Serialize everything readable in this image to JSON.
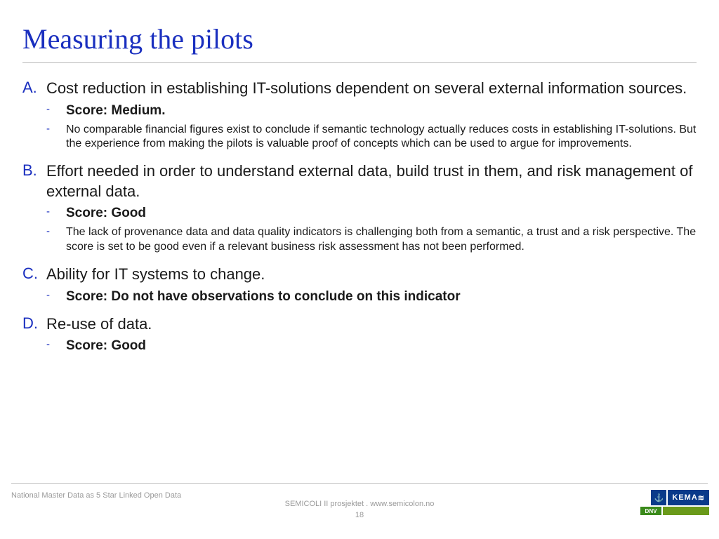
{
  "title": "Measuring the pilots",
  "title_color": "#1a2fbf",
  "body_color": "#1a1a1a",
  "letter_color": "#1a2fbf",
  "rule_color": "#b8b8b8",
  "items": [
    {
      "letter": "A.",
      "text": "Cost reduction in establishing IT-solutions dependent on several external information sources.",
      "score": "Score: Medium.",
      "desc": "No comparable financial figures exist to conclude if semantic technology actually reduces costs in establishing IT-solutions. But the experience from making the pilots is valuable proof of concepts which can be used to argue for improvements."
    },
    {
      "letter": "B.",
      "text": "Effort needed in order to understand external data, build trust in them, and risk management of external data.",
      "score": "Score: Good",
      "desc": "The lack of provenance data and data quality indicators is challenging both from a semantic, a trust and a risk perspective. The score is set to be good even if a relevant business risk assessment has not been performed."
    },
    {
      "letter": "C.",
      "text": "Ability for IT systems to change.",
      "score": "Score: Do not have observations to conclude on this indicator",
      "desc": ""
    },
    {
      "letter": "D.",
      "text": "Re-use of data.",
      "score": "Score: Good",
      "desc": ""
    }
  ],
  "footer": {
    "left": "National Master Data as 5 Star Linked Open Data",
    "center": "SEMICOLI II prosjektet . www.semicolon.no",
    "page": "18",
    "logos": {
      "anchor_icon": "⚓",
      "kema": "KEMA",
      "kema_suffix": "≋",
      "dnv": "DNV"
    }
  }
}
